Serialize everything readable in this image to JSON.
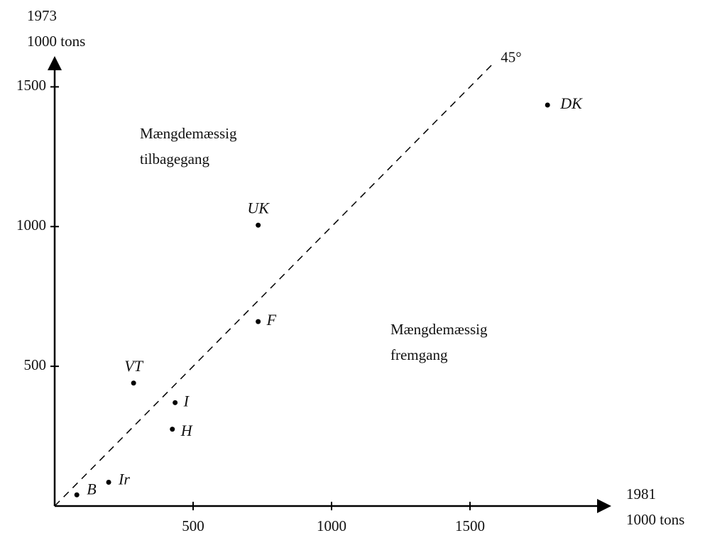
{
  "chart_data": {
    "type": "scatter",
    "y_axis_label": [
      "1973",
      "1000 tons"
    ],
    "x_axis_label": [
      "1981",
      "1000 tons"
    ],
    "annotations": [
      [
        "Mængdemæssig",
        "tilbagegang"
      ],
      [
        "Mængdemæssig",
        "fremgang"
      ]
    ],
    "reference_line": {
      "label": "45°",
      "x": [
        0,
        1580
      ],
      "y": [
        0,
        1580
      ]
    },
    "series": [
      {
        "names": [
          "DK",
          "UK",
          "F",
          "VT",
          "I",
          "H",
          "Ir",
          "B"
        ],
        "color": "#000000",
        "x": [
          1780,
          735,
          735,
          285,
          435,
          425,
          195,
          80
        ],
        "y": [
          1435,
          1005,
          660,
          440,
          370,
          275,
          85,
          40
        ]
      }
    ],
    "xlim": [
      0,
      2000
    ],
    "ylim": [
      0,
      1600
    ],
    "xticks": [
      500,
      1000,
      1500
    ],
    "yticks": [
      500,
      1000,
      1500
    ]
  }
}
